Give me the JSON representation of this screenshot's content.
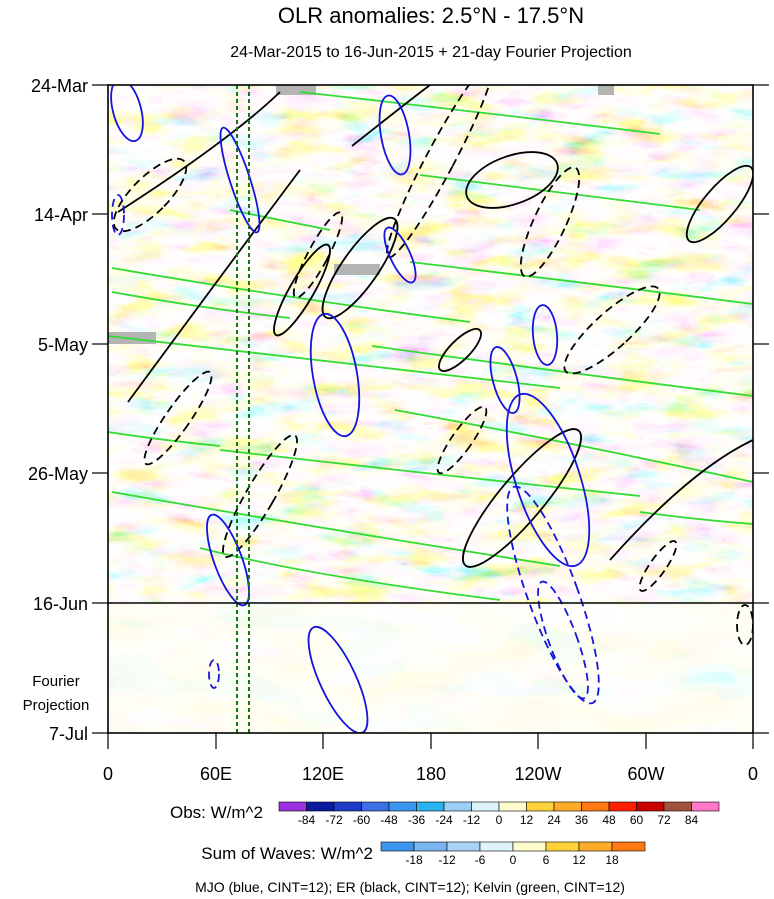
{
  "chart_data": {
    "type": "heatmap",
    "title": "OLR anomalies: 2.5°N - 17.5°N",
    "subtitle": "24-Mar-2015 to 16-Jun-2015 + 21-day Fourier Projection",
    "x_ticks": [
      "0",
      "60E",
      "120E",
      "180",
      "120W",
      "60W",
      "0"
    ],
    "y_ticks": [
      "24-Mar",
      "14-Apr",
      "5-May",
      "26-May",
      "16-Jun",
      "7-Jul"
    ],
    "projection_label": [
      "Fourier",
      "Projection"
    ],
    "obs_legend": {
      "label": "Obs: W/m^2",
      "levels": [
        "-84",
        "-72",
        "-60",
        "-48",
        "-36",
        "-24",
        "-12",
        "0",
        "12",
        "24",
        "36",
        "48",
        "60",
        "72",
        "84"
      ],
      "colors": [
        "#9b30e0",
        "#0a1aa0",
        "#1e3cc8",
        "#3c6ee6",
        "#3c96f0",
        "#28b4f0",
        "#9ccff5",
        "#dff4fa",
        "#fffccd",
        "#ffd23c",
        "#ffaa28",
        "#ff7814",
        "#ff1e00",
        "#c80000",
        "#a0523c",
        "#ff78c8"
      ]
    },
    "waves_legend": {
      "label": "Sum of Waves: W/m^2",
      "levels": [
        "-18",
        "-12",
        "-6",
        "0",
        "6",
        "12",
        "18"
      ],
      "colors": [
        "#3c96f0",
        "#78b4f0",
        "#aad2f5",
        "#dff4fa",
        "#fffccd",
        "#ffd23c",
        "#ffaa28",
        "#ff7814"
      ]
    },
    "footnote": "MJO (blue, CINT=12); ER (black, CINT=12); Kelvin (green, CINT=12)",
    "colors": {
      "mjo": "#1414dc",
      "er": "#000000",
      "kelvin": "#32dc32",
      "reference_lines": "#147814"
    },
    "map_palette": [
      "#1e50d2",
      "#3c7ae6",
      "#5aa0f0",
      "#a0d2f5",
      "#e6f5fa",
      "#fffccd",
      "#ffe68c",
      "#ffd23c",
      "#ffaa28",
      "#ff7814",
      "#e65014"
    ]
  }
}
